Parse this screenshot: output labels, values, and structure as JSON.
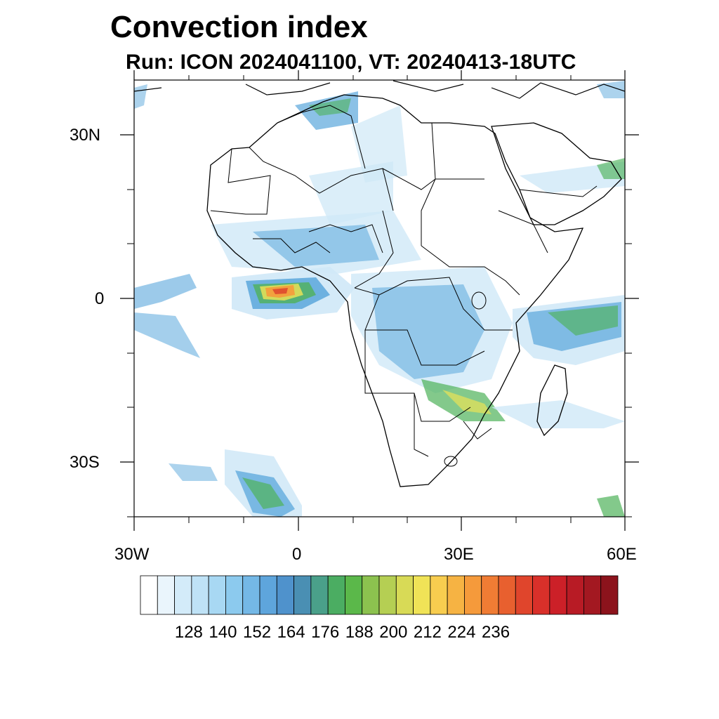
{
  "title": "Convection index",
  "subtitle": "Run: ICON 2024041100,  VT: 20240413-18UTC",
  "map": {
    "projection": "cylindrical equidistant",
    "lon_range": [
      -30,
      60
    ],
    "lat_range": [
      -40,
      40
    ],
    "x_tick_labels": [
      "30W",
      "0",
      "30E",
      "60E"
    ],
    "y_tick_labels": [
      "30N",
      "0",
      "30S"
    ],
    "colors": {
      "coast": "#000000",
      "low": "#cfe8f7",
      "mid": "#5aa7dc",
      "green": "#4fb25a",
      "yellow": "#e9e257",
      "orange": "#f59a3b",
      "red": "#d9302a"
    }
  },
  "colorbar": {
    "labels": [
      "128",
      "140",
      "152",
      "164",
      "176",
      "188",
      "200",
      "212",
      "224",
      "236"
    ],
    "colors": [
      "#ffffff",
      "#eaf5fc",
      "#d3ebf9",
      "#bfe2f6",
      "#a8d8f3",
      "#8ccaee",
      "#74b8e6",
      "#5ea5dc",
      "#4f92cc",
      "#4a8fb3",
      "#4aa08a",
      "#4bad62",
      "#5bb84a",
      "#8cc24f",
      "#b5cf53",
      "#d8da56",
      "#f0e357",
      "#f8cd4f",
      "#f6b343",
      "#f59a3b",
      "#f07c34",
      "#e8602f",
      "#e0452c",
      "#d9302a",
      "#cc2028",
      "#b81b25",
      "#a31821",
      "#8c131c"
    ]
  }
}
